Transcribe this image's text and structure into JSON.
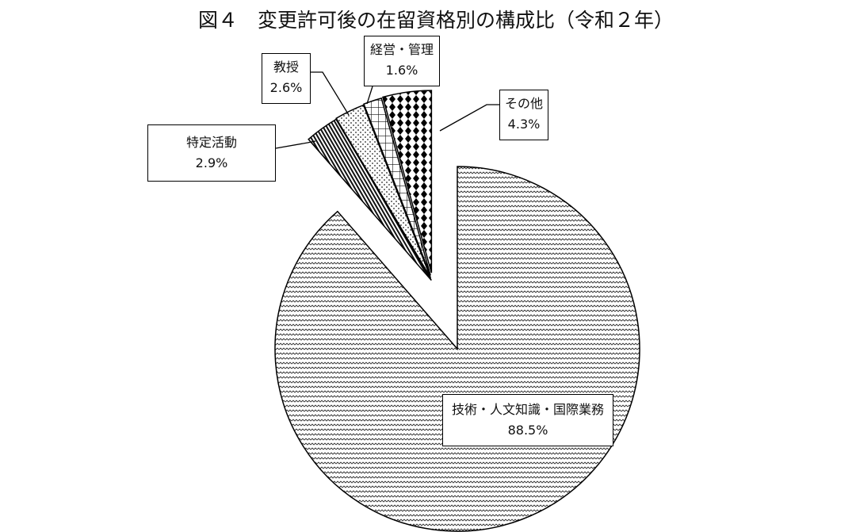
{
  "chart_data": {
    "type": "pie",
    "title": "図４　変更許可後の在留資格別の構成比（令和２年）",
    "slices": [
      {
        "label": "技術・人文知識・国際業務",
        "value": 88.5,
        "value_label": "88.5%",
        "pattern": "wave",
        "exploded": false
      },
      {
        "label": "特定活動",
        "value": 2.9,
        "value_label": "2.9%",
        "pattern": "diagonal-stripes",
        "exploded": true
      },
      {
        "label": "教授",
        "value": 2.6,
        "value_label": "2.6%",
        "pattern": "dots",
        "exploded": true
      },
      {
        "label": "経営・管理",
        "value": 1.6,
        "value_label": "1.6%",
        "pattern": "grid",
        "exploded": true
      },
      {
        "label": "その他",
        "value": 4.3,
        "value_label": "4.3%",
        "pattern": "diamonds",
        "exploded": true
      }
    ],
    "start": "12 o'clock",
    "direction": "clockwise",
    "legend": "none (callout labels)"
  }
}
